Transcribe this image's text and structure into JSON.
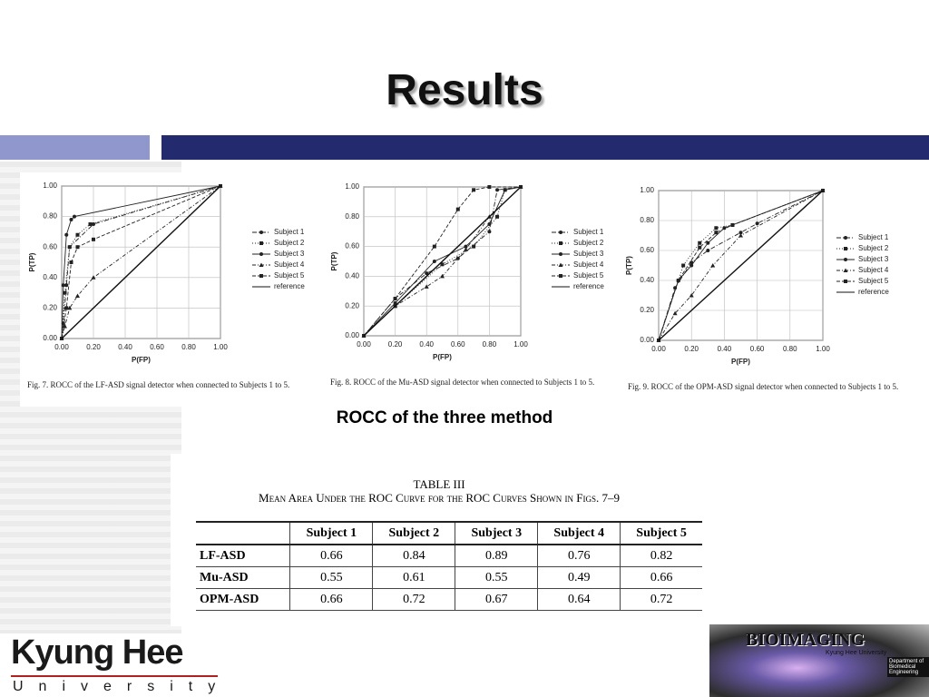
{
  "header": {
    "title": "Results"
  },
  "chart_data": [
    {
      "type": "line",
      "caption": "Fig. 7.    ROCC of the LF-ASD signal detector when connected to Subjects 1 to 5.",
      "x_label": "P(FP)",
      "y_label": "P(TP)",
      "xlim": [
        0,
        1
      ],
      "ylim": [
        0,
        1
      ],
      "grid": true,
      "xticks": [
        {
          "value": 0,
          "label": "0.00"
        },
        {
          "value": 0.2,
          "label": "0.20"
        },
        {
          "value": 0.4,
          "label": "0.40"
        },
        {
          "value": 0.6,
          "label": "0.60"
        },
        {
          "value": 0.8,
          "label": "0.80"
        },
        {
          "value": 1,
          "label": "1.00"
        }
      ],
      "yticks": [
        {
          "value": 0,
          "label": "0.00"
        },
        {
          "value": 0.2,
          "label": "0.20"
        },
        {
          "value": 0.4,
          "label": "0.40"
        },
        {
          "value": 0.6,
          "label": "0.60"
        },
        {
          "value": 0.8,
          "label": "0.80"
        },
        {
          "value": 1,
          "label": "1.00"
        }
      ],
      "series": [
        {
          "name": "Subject 1",
          "color": "#222222",
          "dash": "5 2 1 2",
          "marker": "circle",
          "x": [
            0,
            0.01,
            0.03,
            0.05,
            0.2,
            1
          ],
          "values": [
            0,
            0.1,
            0.35,
            0.6,
            0.75,
            1
          ]
        },
        {
          "name": "Subject 2",
          "color": "#222222",
          "dash": "1 2",
          "marker": "square",
          "x": [
            0,
            0.02,
            0.05,
            0.1,
            0.18,
            1
          ],
          "values": [
            0,
            0.3,
            0.6,
            0.68,
            0.75,
            1
          ]
        },
        {
          "name": "Subject 3",
          "color": "#222222",
          "dash": "none",
          "marker": "circle",
          "x": [
            0,
            0.01,
            0.03,
            0.06,
            0.08,
            1
          ],
          "values": [
            0,
            0.35,
            0.68,
            0.78,
            0.8,
            1
          ]
        },
        {
          "name": "Subject 4",
          "color": "#222222",
          "dash": "4 2 1 2",
          "marker": "triangle",
          "x": [
            0,
            0.02,
            0.05,
            0.1,
            0.2,
            1
          ],
          "values": [
            0,
            0.08,
            0.2,
            0.28,
            0.4,
            1
          ]
        },
        {
          "name": "Subject 5",
          "color": "#222222",
          "dash": "4 2",
          "marker": "square",
          "x": [
            0,
            0.03,
            0.06,
            0.1,
            0.2,
            1
          ],
          "values": [
            0,
            0.2,
            0.5,
            0.6,
            0.65,
            1
          ]
        },
        {
          "name": "reference",
          "color": "#111111",
          "dash": "none",
          "marker": "none",
          "x": [
            0,
            1
          ],
          "values": [
            0,
            1
          ]
        }
      ]
    },
    {
      "type": "line",
      "caption": "Fig. 8.    ROCC of the Mu-ASD signal detector when connected to Subjects 1 to 5.",
      "x_label": "P(FP)",
      "y_label": "P(TP)",
      "xlim": [
        0,
        1
      ],
      "ylim": [
        0,
        1
      ],
      "grid": true,
      "xticks": [
        {
          "value": 0,
          "label": "0.00"
        },
        {
          "value": 0.2,
          "label": "0.20"
        },
        {
          "value": 0.4,
          "label": "0.40"
        },
        {
          "value": 0.6,
          "label": "0.60"
        },
        {
          "value": 0.8,
          "label": "0.80"
        },
        {
          "value": 1,
          "label": "1.00"
        }
      ],
      "yticks": [
        {
          "value": 0,
          "label": "0.00"
        },
        {
          "value": 0.2,
          "label": "0.20"
        },
        {
          "value": 0.4,
          "label": "0.40"
        },
        {
          "value": 0.6,
          "label": "0.60"
        },
        {
          "value": 0.8,
          "label": "0.80"
        },
        {
          "value": 1,
          "label": "1.00"
        }
      ],
      "series": [
        {
          "name": "Subject 1",
          "color": "#222222",
          "dash": "5 2 1 2",
          "marker": "circle",
          "x": [
            0,
            0.2,
            0.4,
            0.6,
            0.8,
            0.85,
            1
          ],
          "values": [
            0,
            0.25,
            0.42,
            0.52,
            0.7,
            0.98,
            1
          ]
        },
        {
          "name": "Subject 2",
          "color": "#222222",
          "dash": "1 2",
          "marker": "square",
          "x": [
            0,
            0.2,
            0.5,
            0.7,
            0.85,
            0.9,
            1
          ],
          "values": [
            0,
            0.2,
            0.48,
            0.6,
            0.8,
            0.98,
            1
          ]
        },
        {
          "name": "Subject 3",
          "color": "#222222",
          "dash": "none",
          "marker": "circle",
          "x": [
            0,
            0.2,
            0.45,
            0.65,
            0.8,
            0.9,
            1
          ],
          "values": [
            0,
            0.22,
            0.5,
            0.6,
            0.75,
            0.98,
            1
          ]
        },
        {
          "name": "Subject 4",
          "color": "#222222",
          "dash": "4 2 1 2",
          "marker": "triangle",
          "x": [
            0,
            0.2,
            0.4,
            0.5,
            0.65,
            0.8,
            1
          ],
          "values": [
            0,
            0.2,
            0.33,
            0.4,
            0.58,
            0.8,
            1
          ]
        },
        {
          "name": "Subject 5",
          "color": "#222222",
          "dash": "4 2",
          "marker": "square",
          "x": [
            0,
            0.2,
            0.45,
            0.6,
            0.7,
            0.8,
            1
          ],
          "values": [
            0,
            0.25,
            0.6,
            0.85,
            0.98,
            1,
            1
          ]
        },
        {
          "name": "reference",
          "color": "#111111",
          "dash": "none",
          "marker": "none",
          "x": [
            0,
            1
          ],
          "values": [
            0,
            1
          ]
        }
      ]
    },
    {
      "type": "line",
      "caption": "Fig. 9.    ROCC of the OPM-ASD signal detector when connected to Subjects 1 to 5.",
      "x_label": "P(FP)",
      "y_label": "P(TP)",
      "xlim": [
        0,
        1
      ],
      "ylim": [
        0,
        1
      ],
      "grid": true,
      "xticks": [
        {
          "value": 0,
          "label": "0.00"
        },
        {
          "value": 0.2,
          "label": "0.20"
        },
        {
          "value": 0.4,
          "label": "0.40"
        },
        {
          "value": 0.6,
          "label": "0.60"
        },
        {
          "value": 0.8,
          "label": "0.80"
        },
        {
          "value": 1,
          "label": "1.00"
        }
      ],
      "yticks": [
        {
          "value": 0,
          "label": "0.00"
        },
        {
          "value": 0.2,
          "label": "0.20"
        },
        {
          "value": 0.4,
          "label": "0.40"
        },
        {
          "value": 0.6,
          "label": "0.60"
        },
        {
          "value": 0.8,
          "label": "0.80"
        },
        {
          "value": 1,
          "label": "1.00"
        }
      ],
      "series": [
        {
          "name": "Subject 1",
          "color": "#222222",
          "dash": "5 2 1 2",
          "marker": "circle",
          "x": [
            0,
            0.1,
            0.2,
            0.3,
            0.5,
            0.6,
            1
          ],
          "values": [
            0,
            0.35,
            0.52,
            0.6,
            0.72,
            0.78,
            1
          ]
        },
        {
          "name": "Subject 2",
          "color": "#222222",
          "dash": "1 2",
          "marker": "square",
          "x": [
            0,
            0.15,
            0.25,
            0.35,
            0.45,
            1
          ],
          "values": [
            0,
            0.5,
            0.65,
            0.75,
            0.77,
            1
          ]
        },
        {
          "name": "Subject 3",
          "color": "#222222",
          "dash": "none",
          "marker": "circle",
          "x": [
            0,
            0.12,
            0.2,
            0.3,
            0.4,
            1
          ],
          "values": [
            0,
            0.4,
            0.5,
            0.65,
            0.75,
            1
          ]
        },
        {
          "name": "Subject 4",
          "color": "#222222",
          "dash": "4 2 1 2",
          "marker": "triangle",
          "x": [
            0,
            0.1,
            0.2,
            0.33,
            0.5,
            1
          ],
          "values": [
            0,
            0.18,
            0.3,
            0.5,
            0.7,
            1
          ]
        },
        {
          "name": "Subject 5",
          "color": "#222222",
          "dash": "4 2",
          "marker": "square",
          "x": [
            0,
            0.12,
            0.25,
            0.35,
            0.45,
            1
          ],
          "values": [
            0,
            0.4,
            0.62,
            0.72,
            0.77,
            1
          ]
        },
        {
          "name": "reference",
          "color": "#111111",
          "dash": "none",
          "marker": "none",
          "x": [
            0,
            1
          ],
          "values": [
            0,
            1
          ]
        }
      ]
    }
  ],
  "figure_caption": "ROCC of the three method",
  "table": {
    "label": "TABLE III",
    "title": "Mean Area Under the ROC Curve for the ROC Curves Shown in Figs. 7–9",
    "columns": [
      "Subject 1",
      "Subject 2",
      "Subject 3",
      "Subject 4",
      "Subject 5"
    ],
    "rows": [
      {
        "label": "LF-ASD",
        "values": [
          0.66,
          0.84,
          0.89,
          0.76,
          0.82
        ]
      },
      {
        "label": "Mu-ASD",
        "values": [
          0.55,
          0.61,
          0.55,
          0.49,
          0.66
        ]
      },
      {
        "label": "OPM-ASD",
        "values": [
          0.66,
          0.72,
          0.67,
          0.64,
          0.72
        ]
      }
    ]
  },
  "footer": {
    "name": "Kyung Hee",
    "subtitle": "University",
    "logo": {
      "title": "BIOIMAGING",
      "subtitle": "Kyung Hee University",
      "side": "Department of Biomedical Engineering"
    }
  }
}
